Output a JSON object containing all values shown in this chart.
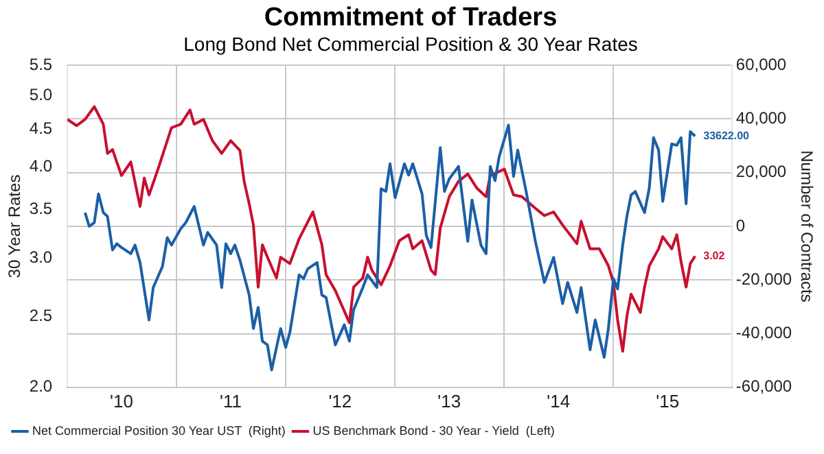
{
  "chart_data": {
    "type": "line",
    "title": "Commitment of Traders",
    "subtitle": "Long Bond Net Commercial Position & 30 Year Rates",
    "ylabel": "30 Year Rates",
    "y2label": "Number of Contracts",
    "xlim": [
      "2010-01-01",
      "2016-02-01"
    ],
    "xticks": [
      {
        "value": "2010-07-01",
        "label": "'10"
      },
      {
        "value": "2011-01-01",
        "label": null
      },
      {
        "value": "2011-07-01",
        "label": "'11"
      },
      {
        "value": "2012-01-01",
        "label": null
      },
      {
        "value": "2012-07-01",
        "label": "'12"
      },
      {
        "value": "2013-01-01",
        "label": null
      },
      {
        "value": "2013-07-01",
        "label": "'13"
      },
      {
        "value": "2014-01-01",
        "label": null
      },
      {
        "value": "2014-07-01",
        "label": "'14"
      },
      {
        "value": "2015-01-01",
        "label": null
      },
      {
        "value": "2015-07-01",
        "label": "'15"
      }
    ],
    "ylim": [
      2,
      5.5
    ],
    "yticks": [
      {
        "value": 2,
        "label": "2.0"
      },
      {
        "value": 2.5,
        "label": "2.5"
      },
      {
        "value": 3,
        "label": "3.0"
      },
      {
        "value": 3.5,
        "label": "3.5"
      },
      {
        "value": 4,
        "label": "4.0"
      },
      {
        "value": 4.5,
        "label": "4.5"
      },
      {
        "value": 5,
        "label": "5.0"
      },
      {
        "value": 5.5,
        "label": "5.5"
      }
    ],
    "log": "y",
    "y2lim": [
      -60000,
      60000
    ],
    "y2ticks": [
      {
        "value": -60000,
        "label": "-60,000"
      },
      {
        "value": -40000,
        "label": "-40,000"
      },
      {
        "value": -20000,
        "label": "-20,000"
      },
      0,
      {
        "value": 20000,
        "label": "20,000"
      },
      {
        "value": 40000,
        "label": "40,000"
      },
      {
        "value": 60000,
        "label": "60,000"
      }
    ],
    "grid": true,
    "legend": "bottom",
    "marker": "none",
    "line_style": "solid",
    "series": [
      {
        "name": "Net Commercial Position 30 Year UST  (Right)",
        "color": "#1b5fa6",
        "axis": "y2",
        "x": [
          "2010-03-01",
          "2010-03-15",
          "2010-04-01",
          "2010-04-15",
          "2010-05-01",
          "2010-05-15",
          "2010-06-01",
          "2010-06-15",
          "2010-07-01",
          "2010-08-01",
          "2010-08-15",
          "2010-09-01",
          "2010-10-01",
          "2010-10-15",
          "2010-11-15",
          "2010-12-01",
          "2010-12-15",
          "2011-01-15",
          "2011-02-01",
          "2011-03-01",
          "2011-04-01",
          "2011-04-15",
          "2011-05-15",
          "2011-06-01",
          "2011-06-15",
          "2011-07-01",
          "2011-07-15",
          "2011-08-01",
          "2011-09-01",
          "2011-09-15",
          "2011-10-01",
          "2011-10-15",
          "2011-11-01",
          "2011-11-15",
          "2011-12-15",
          "2012-01-01",
          "2012-01-15",
          "2012-02-15",
          "2012-03-01",
          "2012-03-15",
          "2012-04-15",
          "2012-05-01",
          "2012-05-15",
          "2012-06-15",
          "2012-07-15",
          "2012-08-01",
          "2012-08-15",
          "2012-09-15",
          "2012-10-01",
          "2012-11-01",
          "2012-11-15",
          "2012-12-01",
          "2012-12-15",
          "2013-01-01",
          "2013-02-01",
          "2013-02-15",
          "2013-03-01",
          "2013-04-01",
          "2013-04-15",
          "2013-05-01",
          "2013-06-01",
          "2013-06-15",
          "2013-07-01",
          "2013-08-01",
          "2013-09-01",
          "2013-09-15",
          "2013-10-15",
          "2013-11-01",
          "2013-11-15",
          "2013-12-01",
          "2013-12-15",
          "2014-01-15",
          "2014-02-01",
          "2014-02-15",
          "2014-03-15",
          "2014-04-15",
          "2014-05-15",
          "2014-06-15",
          "2014-07-15",
          "2014-08-01",
          "2014-09-01",
          "2014-09-15",
          "2014-10-15",
          "2014-11-01",
          "2014-12-01",
          "2014-12-15",
          "2015-01-01",
          "2015-01-15",
          "2015-02-01",
          "2015-02-15",
          "2015-03-01",
          "2015-03-15",
          "2015-04-15",
          "2015-05-01",
          "2015-05-15",
          "2015-06-01",
          "2015-06-15",
          "2015-07-15",
          "2015-08-01",
          "2015-08-15",
          "2015-09-01",
          "2015-09-15",
          "2015-10-01"
        ],
        "values": [
          5100,
          0,
          1400,
          12100,
          5100,
          3700,
          -8800,
          -6500,
          -7900,
          -10200,
          -7000,
          -13500,
          -34900,
          -22800,
          -14900,
          -4200,
          -7000,
          -900,
          1400,
          7400,
          -7000,
          -2300,
          -7000,
          -22800,
          -6500,
          -10200,
          -7000,
          -12600,
          -25600,
          -38100,
          -30200,
          -42800,
          -44200,
          -53500,
          -38100,
          -45100,
          -39500,
          -18100,
          -19500,
          -15800,
          -13500,
          -25600,
          -26500,
          -44200,
          -36700,
          -42800,
          -31200,
          -22800,
          -18100,
          -22800,
          14000,
          13000,
          23300,
          10700,
          23300,
          19100,
          23300,
          12100,
          -3300,
          -7900,
          29300,
          13000,
          17700,
          22300,
          -5600,
          9800,
          -7000,
          -10200,
          22300,
          17000,
          26000,
          37700,
          18600,
          28400,
          13000,
          -5600,
          -20900,
          -11600,
          -28800,
          -20900,
          -32100,
          -22800,
          -46000,
          -34900,
          -48800,
          -38100,
          -19500,
          -23300,
          -7000,
          3700,
          11600,
          13000,
          5100,
          14400,
          33000,
          28400,
          9300,
          30700,
          30200,
          33000,
          8400,
          35300,
          33622
        ],
        "value_labels": [
          null,
          null,
          null,
          null,
          null,
          null,
          null,
          null,
          null,
          null,
          null,
          null,
          null,
          null,
          null,
          null,
          null,
          null,
          null,
          null,
          null,
          null,
          null,
          null,
          null,
          null,
          null,
          null,
          null,
          null,
          null,
          null,
          null,
          null,
          null,
          null,
          null,
          null,
          null,
          null,
          null,
          null,
          null,
          null,
          null,
          null,
          null,
          null,
          null,
          null,
          null,
          null,
          null,
          null,
          null,
          null,
          null,
          null,
          null,
          null,
          null,
          null,
          null,
          null,
          null,
          null,
          null,
          null,
          null,
          null,
          null,
          null,
          null,
          null,
          null,
          null,
          null,
          null,
          null,
          null,
          null,
          null,
          null,
          null,
          null,
          null,
          null,
          null,
          null,
          null,
          null,
          null,
          null,
          null,
          null,
          null,
          null,
          null,
          null,
          null,
          null,
          null,
          "33622.00"
        ]
      },
      {
        "name": "US Benchmark Bond - 30 Year - Yield  (Left)",
        "color": "#c8102e",
        "x": [
          "2010-01-01",
          "2010-02-01",
          "2010-03-01",
          "2010-04-01",
          "2010-05-01",
          "2010-05-15",
          "2010-06-01",
          "2010-06-15",
          "2010-07-01",
          "2010-08-01",
          "2010-09-01",
          "2010-09-15",
          "2010-10-01",
          "2010-11-01",
          "2010-12-01",
          "2010-12-15",
          "2011-01-15",
          "2011-02-15",
          "2011-03-01",
          "2011-04-01",
          "2011-05-01",
          "2011-06-01",
          "2011-07-01",
          "2011-08-01",
          "2011-08-15",
          "2011-09-01",
          "2011-09-15",
          "2011-10-01",
          "2011-10-15",
          "2011-11-01",
          "2011-12-01",
          "2011-12-15",
          "2012-01-15",
          "2012-02-15",
          "2012-04-01",
          "2012-05-01",
          "2012-05-15",
          "2012-06-15",
          "2012-08-01",
          "2012-08-15",
          "2012-09-15",
          "2012-10-01",
          "2012-10-15",
          "2012-11-15",
          "2012-12-15",
          "2013-01-15",
          "2013-02-15",
          "2013-03-01",
          "2013-04-01",
          "2013-05-01",
          "2013-05-15",
          "2013-06-01",
          "2013-07-01",
          "2013-08-01",
          "2013-09-01",
          "2013-10-01",
          "2013-11-01",
          "2013-11-15",
          "2014-01-01",
          "2014-02-01",
          "2014-03-01",
          "2014-04-15",
          "2014-05-15",
          "2014-06-15",
          "2014-07-15",
          "2014-09-01",
          "2014-09-15",
          "2014-10-15",
          "2014-11-15",
          "2014-12-15",
          "2015-01-01",
          "2015-01-15",
          "2015-02-01",
          "2015-02-15",
          "2015-03-01",
          "2015-04-01",
          "2015-04-15",
          "2015-05-01",
          "2015-06-01",
          "2015-06-15",
          "2015-07-15",
          "2015-08-01",
          "2015-08-15",
          "2015-09-01",
          "2015-09-15",
          "2015-10-01"
        ],
        "values": [
          4.64,
          4.55,
          4.64,
          4.83,
          4.57,
          4.17,
          4.22,
          4.06,
          3.89,
          4.06,
          3.53,
          3.86,
          3.66,
          3.98,
          4.34,
          4.52,
          4.57,
          4.78,
          4.57,
          4.64,
          4.34,
          4.17,
          4.34,
          4.21,
          3.82,
          3.56,
          3.33,
          2.74,
          3.13,
          3.01,
          2.82,
          3.01,
          2.95,
          3.19,
          3.47,
          3.13,
          2.85,
          2.71,
          2.45,
          2.74,
          2.82,
          3.01,
          2.89,
          2.76,
          2.93,
          3.17,
          3.23,
          3.09,
          3.17,
          2.89,
          2.85,
          3.3,
          3.64,
          3.82,
          3.91,
          3.74,
          3.64,
          3.89,
          3.97,
          3.66,
          3.64,
          3.51,
          3.43,
          3.47,
          3.33,
          3.14,
          3.37,
          3.09,
          3.09,
          2.93,
          2.78,
          2.47,
          2.24,
          2.5,
          2.68,
          2.53,
          2.74,
          2.93,
          3.09,
          3.21,
          3.09,
          3.23,
          2.97,
          2.74,
          2.95,
          3.02
        ],
        "value_labels": [
          null,
          null,
          null,
          null,
          null,
          null,
          null,
          null,
          null,
          null,
          null,
          null,
          null,
          null,
          null,
          null,
          null,
          null,
          null,
          null,
          null,
          null,
          null,
          null,
          null,
          null,
          null,
          null,
          null,
          null,
          null,
          null,
          null,
          null,
          null,
          null,
          null,
          null,
          null,
          null,
          null,
          null,
          null,
          null,
          null,
          null,
          null,
          null,
          null,
          null,
          null,
          null,
          null,
          null,
          null,
          null,
          null,
          null,
          null,
          null,
          null,
          null,
          null,
          null,
          null,
          null,
          null,
          null,
          null,
          null,
          null,
          null,
          null,
          null,
          null,
          null,
          null,
          null,
          null,
          null,
          null,
          null,
          null,
          null,
          null,
          "3.02"
        ]
      }
    ]
  }
}
